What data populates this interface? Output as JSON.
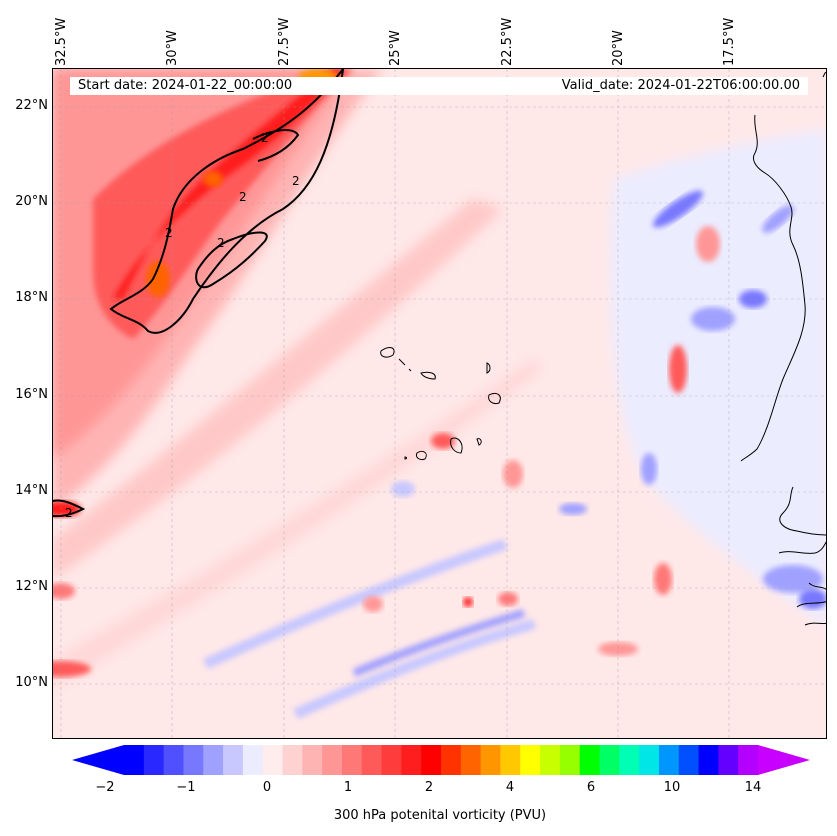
{
  "map": {
    "start_date": "Start date: 2024-01-22_00:00:00",
    "valid_date": "Valid_date: 2024-01-22T06:00:00.00",
    "lon_labels": [
      "32.5°W",
      "30°W",
      "27.5°W",
      "25°W",
      "22.5°W",
      "20°W",
      "17.5°W"
    ],
    "lat_labels": [
      "22°N",
      "20°N",
      "18°N",
      "16°N",
      "14°N",
      "12°N",
      "10°N"
    ],
    "contour_labels": [
      "2",
      "2",
      "2",
      "2",
      "2",
      "2"
    ],
    "colorbar": {
      "label": "300 hPa potenital vorticity (PVU)",
      "ticks": [
        "−2",
        "−1",
        "0",
        "1",
        "2",
        "4",
        "6",
        "10",
        "14"
      ],
      "colors": [
        "#0000ff",
        "#2828ff",
        "#5050ff",
        "#7878ff",
        "#a0a0ff",
        "#c8c8ff",
        "#ececff",
        "#ffecec",
        "#ffd2d2",
        "#ffb4b4",
        "#ff9696",
        "#ff7878",
        "#ff5a5a",
        "#ff3c3c",
        "#ff1e1e",
        "#ff0000",
        "#ff3200",
        "#ff6400",
        "#ff9600",
        "#ffc800",
        "#ffff00",
        "#c8ff00",
        "#96ff00",
        "#00ff00",
        "#00ff64",
        "#00ffb4",
        "#00e6e6",
        "#0096ff",
        "#0050ff",
        "#0000ff",
        "#6400ff",
        "#b400ff"
      ],
      "under_color": "#0000ff",
      "over_color": "#c800ff"
    }
  }
}
